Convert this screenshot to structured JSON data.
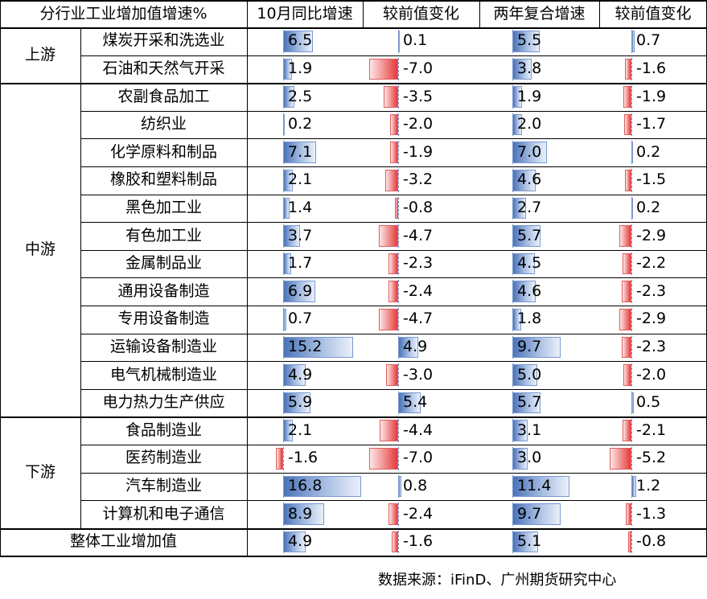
{
  "chart_data": {
    "type": "table",
    "headers": [
      "分行业工业增加值增速%",
      "10月同比增速",
      "较前值变化",
      "两年复合增速",
      "较前值变化"
    ],
    "groups": [
      {
        "name": "上游",
        "rows": [
          {
            "industry": "煤炭开采和洗选业",
            "yoy": 6.5,
            "yoy_change": 0.1,
            "cagr2": 5.5,
            "cagr2_change": 0.7
          },
          {
            "industry": "石油和天然气开采",
            "yoy": 1.9,
            "yoy_change": -7.0,
            "cagr2": 3.8,
            "cagr2_change": -1.6
          }
        ]
      },
      {
        "name": "中游",
        "rows": [
          {
            "industry": "农副食品加工",
            "yoy": 2.5,
            "yoy_change": -3.5,
            "cagr2": 1.9,
            "cagr2_change": -1.9
          },
          {
            "industry": "纺织业",
            "yoy": 0.2,
            "yoy_change": -2.0,
            "cagr2": 2.0,
            "cagr2_change": -1.7
          },
          {
            "industry": "化学原料和制品",
            "yoy": 7.1,
            "yoy_change": -1.9,
            "cagr2": 7.0,
            "cagr2_change": 0.2
          },
          {
            "industry": "橡胶和塑料制品",
            "yoy": 2.1,
            "yoy_change": -3.2,
            "cagr2": 4.6,
            "cagr2_change": -1.5
          },
          {
            "industry": "黑色加工业",
            "yoy": 1.4,
            "yoy_change": -0.8,
            "cagr2": 2.7,
            "cagr2_change": 0.2
          },
          {
            "industry": "有色加工业",
            "yoy": 3.7,
            "yoy_change": -4.7,
            "cagr2": 5.7,
            "cagr2_change": -2.9
          },
          {
            "industry": "金属制品业",
            "yoy": 1.7,
            "yoy_change": -2.3,
            "cagr2": 4.5,
            "cagr2_change": -2.2
          },
          {
            "industry": "通用设备制造",
            "yoy": 6.9,
            "yoy_change": -2.4,
            "cagr2": 4.6,
            "cagr2_change": -2.3
          },
          {
            "industry": "专用设备制造",
            "yoy": 0.7,
            "yoy_change": -4.7,
            "cagr2": 1.8,
            "cagr2_change": -2.9
          },
          {
            "industry": "运输设备制造业",
            "yoy": 15.2,
            "yoy_change": 4.9,
            "cagr2": 9.7,
            "cagr2_change": -2.3
          },
          {
            "industry": "电气机械制造业",
            "yoy": 4.9,
            "yoy_change": -3.0,
            "cagr2": 5.0,
            "cagr2_change": -2.0
          },
          {
            "industry": "电力热力生产供应",
            "yoy": 5.9,
            "yoy_change": 5.4,
            "cagr2": 5.7,
            "cagr2_change": 0.5
          }
        ]
      },
      {
        "name": "下游",
        "rows": [
          {
            "industry": "食品制造业",
            "yoy": 2.1,
            "yoy_change": -4.4,
            "cagr2": 3.1,
            "cagr2_change": -2.1
          },
          {
            "industry": "医药制造业",
            "yoy": -1.6,
            "yoy_change": -7.0,
            "cagr2": 3.0,
            "cagr2_change": -5.2
          },
          {
            "industry": "汽车制造业",
            "yoy": 16.8,
            "yoy_change": 0.8,
            "cagr2": 11.4,
            "cagr2_change": 1.2
          },
          {
            "industry": "计算机和电子通信",
            "yoy": 8.9,
            "yoy_change": -2.4,
            "cagr2": 9.7,
            "cagr2_change": -1.3
          }
        ]
      }
    ],
    "total": {
      "name": "整体工业增加值",
      "yoy": 4.9,
      "yoy_change": -1.6,
      "cagr2": 5.1,
      "cagr2_change": -0.8
    },
    "colors": {
      "positive_bar": "#4a73b8",
      "negative_bar": "#e53a3a"
    }
  },
  "source": "数据来源：iFinD、广州期货研究中心"
}
